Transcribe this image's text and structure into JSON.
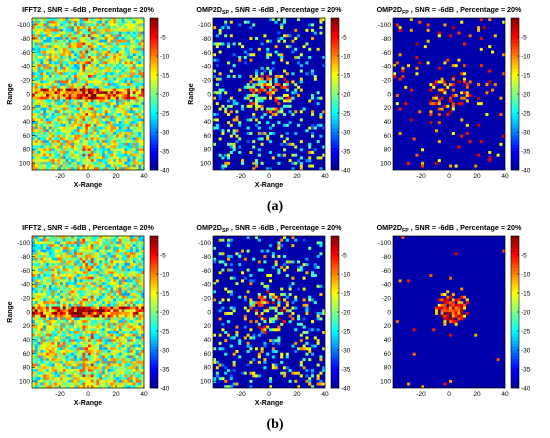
{
  "figure": {
    "caption_a": "(a)",
    "caption_b": "(b)"
  },
  "colorscale": [
    "#00008f",
    "#0000ff",
    "#0080ff",
    "#00ffff",
    "#80ff80",
    "#ffff00",
    "#ff8000",
    "#ff0000",
    "#800000"
  ],
  "chart_data": [
    {
      "type": "heatmap",
      "row": "a",
      "col": 1,
      "pattern": "ifft",
      "title": "IFFT2 , SNR = -6dB , Percentage = 20%",
      "title_main": "IFFT2",
      "title_sub": "",
      "title_rest": " , SNR = -6dB , Percentage = 20%",
      "xlabel": "X-Range",
      "ylabel": "Range",
      "xticks": [
        -20,
        0,
        20,
        40
      ],
      "yticks": [
        -100,
        -80,
        -60,
        -40,
        -20,
        0,
        20,
        40,
        60,
        80,
        100
      ],
      "xlim": [
        -40,
        40
      ],
      "ylim": [
        -110,
        110
      ],
      "colorbar": {
        "ticks": [
          -5,
          -10,
          -15,
          -20,
          -25,
          -30,
          -35,
          -40
        ],
        "range": [
          -40,
          0
        ]
      }
    },
    {
      "type": "heatmap",
      "row": "a",
      "col": 2,
      "pattern": "sparse",
      "title": "OMP2DSP , SNR = -6dB , Percentage = 20%",
      "title_main": "OMP2D",
      "title_sub": "SP",
      "title_rest": " , SNR = -6dB , Percentage = 20%",
      "xlabel": "X-Range",
      "ylabel": "Range",
      "xticks": [
        -20,
        0,
        20,
        40
      ],
      "yticks": [
        -100,
        -80,
        -60,
        -40,
        -20,
        0,
        20,
        40,
        60,
        80,
        100
      ],
      "xlim": [
        -40,
        40
      ],
      "ylim": [
        -110,
        110
      ],
      "colorbar": {
        "ticks": [
          -5,
          -10,
          -15,
          -20,
          -25,
          -30,
          -35,
          -40
        ],
        "range": [
          -40,
          0
        ]
      }
    },
    {
      "type": "heatmap",
      "row": "a",
      "col": 3,
      "pattern": "sparse2",
      "title": "OMP2DFP , SNR = -6dB , Percentage = 20%",
      "title_main": "OMP2D",
      "title_sub": "FP",
      "title_rest": " , SNR = -6dB , Percentage = 20%",
      "xlabel": "",
      "ylabel": "",
      "xticks": [
        -20,
        0,
        20,
        40
      ],
      "yticks": [
        -100,
        -80,
        -60,
        -40,
        -20,
        0,
        20,
        40,
        60,
        80,
        100
      ],
      "xlim": [
        -40,
        40
      ],
      "ylim": [
        -110,
        110
      ],
      "colorbar": {
        "ticks": [
          -5,
          -10,
          -15,
          -20,
          -25,
          -30,
          -35,
          -40
        ],
        "range": [
          -40,
          0
        ]
      }
    },
    {
      "type": "heatmap",
      "row": "b",
      "col": 1,
      "pattern": "ifft",
      "title": "IFFT2 , SNR = -6dB , Percentage = 20%",
      "title_main": "IFFT2",
      "title_sub": "",
      "title_rest": " , SNR = -6dB , Percentage = 20%",
      "xlabel": "X-Range",
      "ylabel": "Range",
      "xticks": [
        -20,
        0,
        20,
        40
      ],
      "yticks": [
        -100,
        -80,
        -60,
        -40,
        -20,
        0,
        20,
        40,
        60,
        80,
        100
      ],
      "xlim": [
        -40,
        40
      ],
      "ylim": [
        -110,
        110
      ],
      "colorbar": {
        "ticks": [
          -5,
          -10,
          -15,
          -20,
          -25,
          -30,
          -35,
          -40
        ],
        "range": [
          -40,
          0
        ]
      }
    },
    {
      "type": "heatmap",
      "row": "b",
      "col": 2,
      "pattern": "sparse",
      "title": "OMP2DSP , SNR = -6dB , Percentage = 20%",
      "title_main": "OMP2D",
      "title_sub": "SP",
      "title_rest": " , SNR = -6dB , Percentage = 20%",
      "xlabel": "X-Range",
      "ylabel": "",
      "xticks": [
        -20,
        0,
        20,
        40
      ],
      "yticks": [
        -100,
        -80,
        -60,
        -40,
        -20,
        0,
        20,
        40,
        60,
        80,
        100
      ],
      "xlim": [
        -40,
        40
      ],
      "ylim": [
        -110,
        110
      ],
      "colorbar": {
        "ticks": [
          -5,
          -10,
          -15,
          -20,
          -25,
          -30,
          -35,
          -40
        ],
        "range": [
          -40,
          0
        ]
      }
    },
    {
      "type": "heatmap",
      "row": "b",
      "col": 3,
      "pattern": "blob",
      "title": "OMP2DFP , SNR = -6dB , Percentage = 20%",
      "title_main": "OMP2D",
      "title_sub": "FP",
      "title_rest": " , SNR = -6dB , Percentage = 20%",
      "xlabel": "",
      "ylabel": "",
      "xticks": [
        -20,
        0,
        20,
        40
      ],
      "yticks": [
        -100,
        -80,
        -60,
        -40,
        -20,
        0,
        20,
        40,
        60,
        80,
        100
      ],
      "xlim": [
        -40,
        40
      ],
      "ylim": [
        -110,
        110
      ],
      "colorbar": {
        "ticks": [
          -5,
          -10,
          -15,
          -20,
          -25,
          -30,
          -35,
          -40
        ],
        "range": [
          -40,
          0
        ]
      }
    }
  ]
}
